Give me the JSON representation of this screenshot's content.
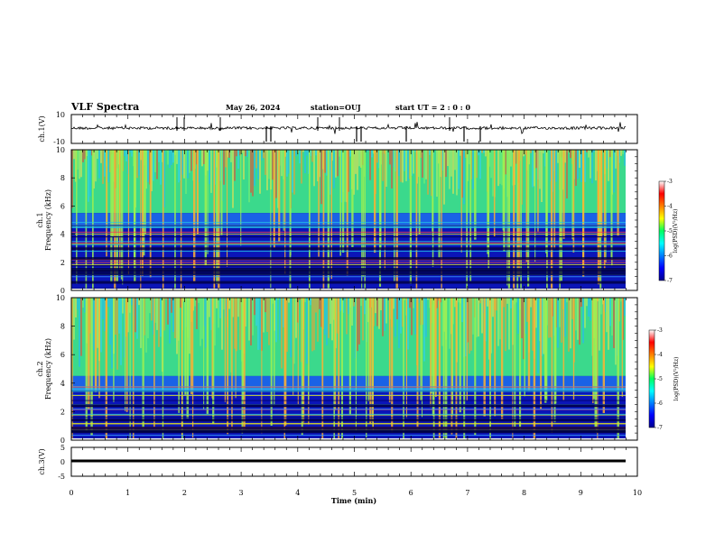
{
  "header": {
    "title": "VLF Spectra",
    "date": "May 26, 2024",
    "station": "station=OUJ",
    "start": "start UT =  2 : 0 : 0"
  },
  "chart_data": [
    {
      "type": "line",
      "panel": "ch1-waveform",
      "ylabel": "ch.1(V)",
      "ylim": [
        -10,
        10
      ],
      "yticks": [
        10,
        -10
      ],
      "xlim": [
        0,
        10
      ],
      "trace_level": 0,
      "color": "#000000"
    },
    {
      "type": "heatmap",
      "panel": "ch1-spectrogram",
      "ylabel": "ch.1 Frequency (kHz)",
      "ylim": [
        0,
        10
      ],
      "yticks": [
        0,
        2,
        4,
        6,
        8,
        10
      ],
      "xlim": [
        0,
        9.83
      ],
      "colorbar": {
        "label": "log(PSD)(V²/Hz)",
        "range": [
          -7,
          -3
        ],
        "ticks": [
          -3,
          -4,
          -5,
          -6,
          -7
        ]
      },
      "description": "broadband noise above ~5.5 kHz with many impulsive vertical bursts; horizontal line interference below 5 kHz"
    },
    {
      "type": "heatmap",
      "panel": "ch2-spectrogram",
      "ylabel": "ch.2 Frequency (kHz)",
      "ylim": [
        0,
        10
      ],
      "yticks": [
        0,
        2,
        4,
        6,
        8,
        10
      ],
      "xlim": [
        0,
        9.83
      ],
      "colorbar": {
        "label": "log(PSD)(V²/Hz)",
        "range": [
          -7,
          -3
        ],
        "ticks": [
          -3,
          -4,
          -5,
          -6,
          -7
        ]
      },
      "description": "broadband noise above ~4.5 kHz with many impulsive vertical bursts; horizontal line interference below 4 kHz"
    },
    {
      "type": "line",
      "panel": "ch3-waveform",
      "ylabel": "ch.3(V)",
      "ylim": [
        -5,
        5
      ],
      "yticks": [
        5,
        0,
        -5
      ],
      "xlim": [
        0,
        10
      ],
      "trace_level": -0.2,
      "color": "#000000"
    }
  ],
  "xaxis": {
    "label": "Time  (min)",
    "ticks": [
      "0",
      "1",
      "2",
      "3",
      "4",
      "5",
      "6",
      "7",
      "8",
      "9",
      "10"
    ]
  },
  "colorbar_labels": {
    "upper": "log(PSD)(V²/Hz)",
    "lower": "log(PSD)(V²/Hz)"
  }
}
